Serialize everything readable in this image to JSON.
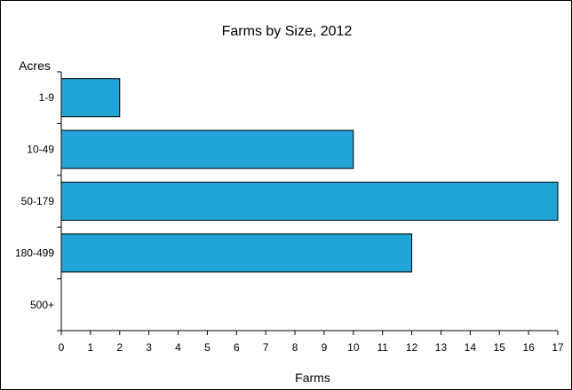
{
  "chart_data": {
    "type": "bar",
    "orientation": "horizontal",
    "title": "Farms by Size, 2012",
    "xlabel": "Farms",
    "ylabel": "Acres",
    "categories": [
      "1-9",
      "10-49",
      "50-179",
      "180-499",
      "500+"
    ],
    "values": [
      2,
      10,
      17,
      12,
      0
    ],
    "xlim": [
      0,
      17
    ],
    "x_ticks": [
      "0",
      "1",
      "2",
      "3",
      "4",
      "5",
      "6",
      "7",
      "8",
      "9",
      "10",
      "11",
      "12",
      "13",
      "14",
      "15",
      "16",
      "17"
    ],
    "grid": false,
    "legend": "none",
    "bar_color": "#22A5D6",
    "bar_edge_color": "#000000"
  }
}
